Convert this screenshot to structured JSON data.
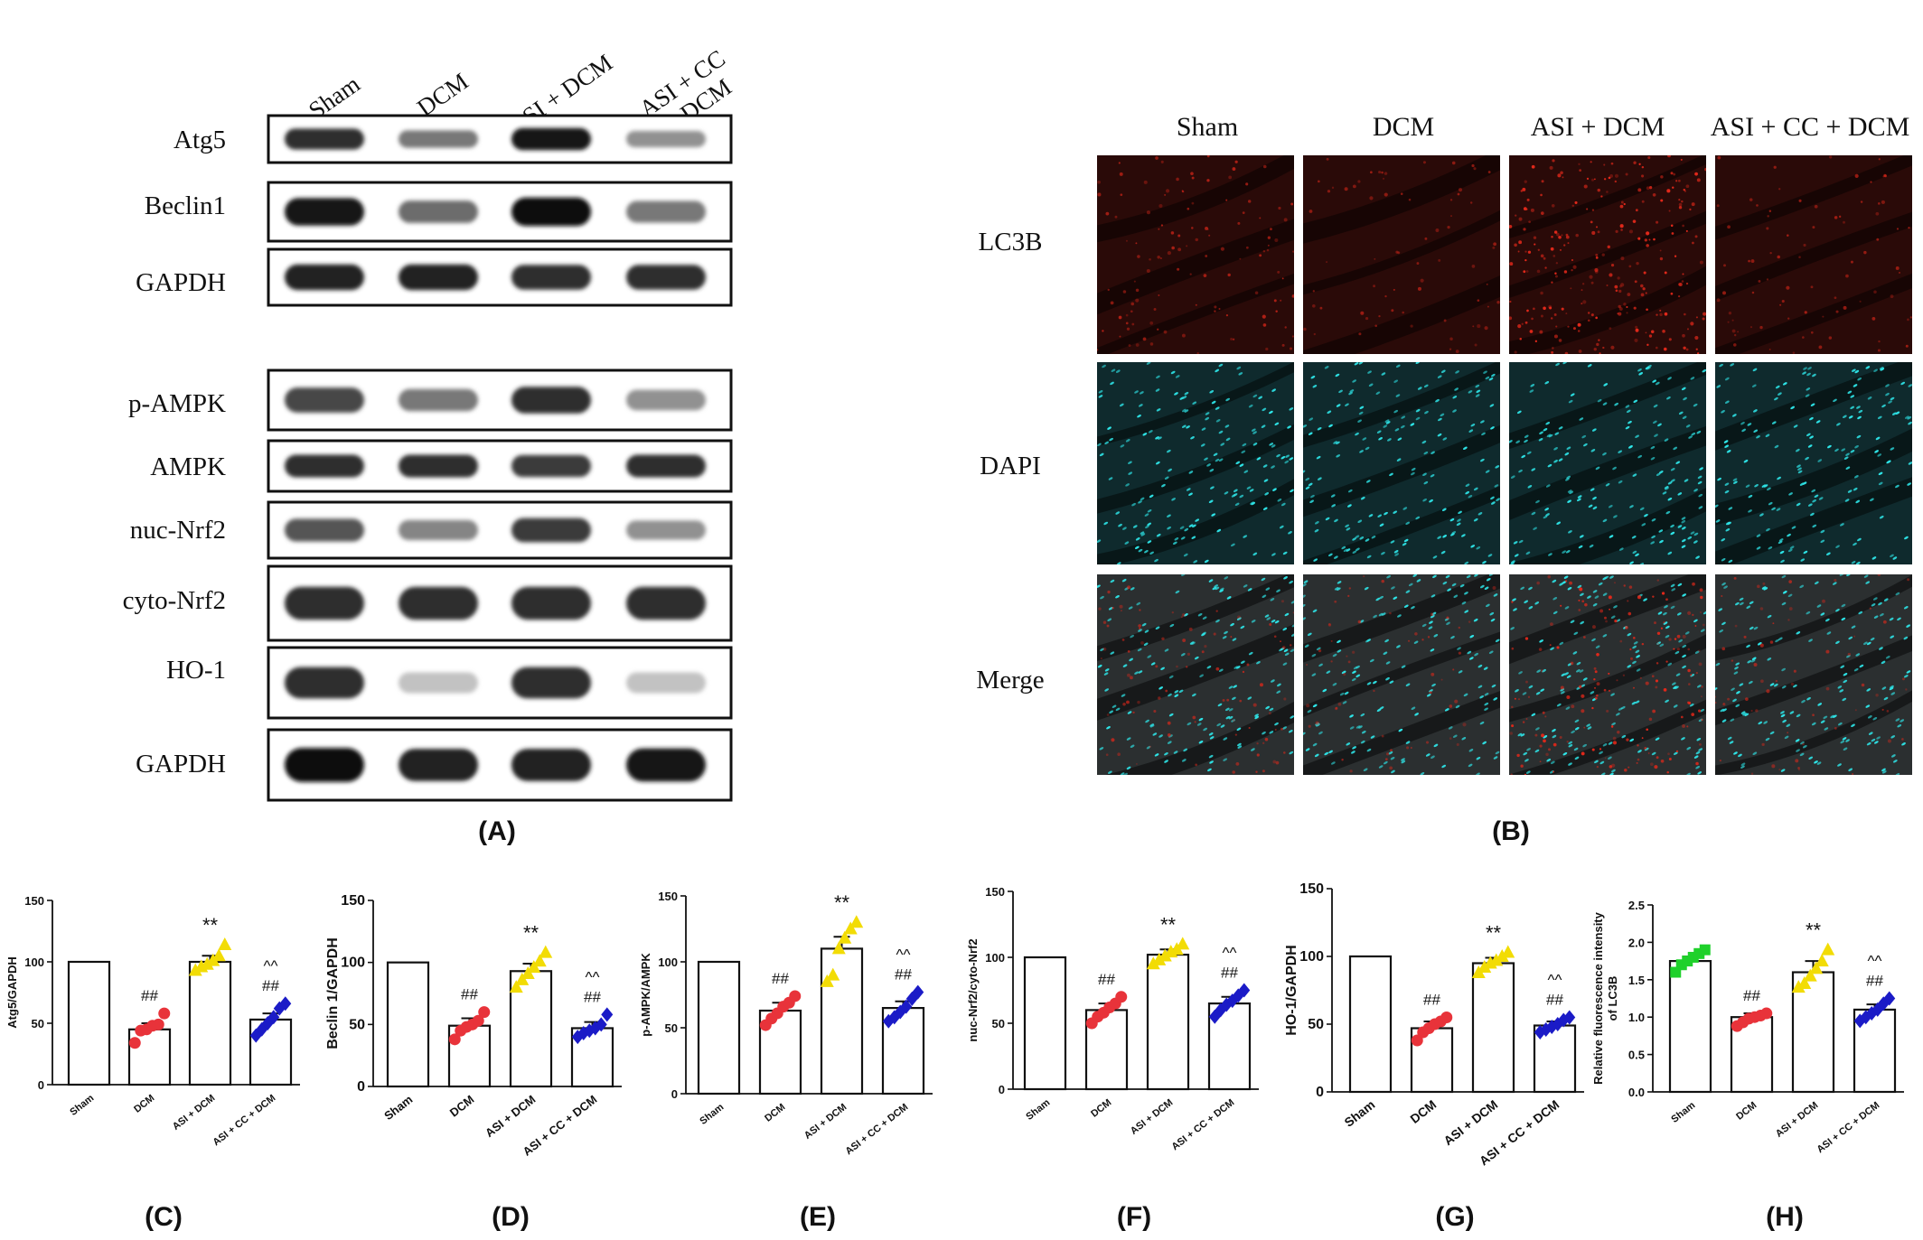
{
  "figure": {
    "panel_labels": [
      "(A)",
      "(B)",
      "(C)",
      "(D)",
      "(E)",
      "(F)",
      "(G)",
      "(H)"
    ]
  },
  "colors": {
    "sham": "#1fd12b",
    "dcm": "#e8333a",
    "asi_dcm": "#f2dc05",
    "asi_cc_dcm": "#1b1bc7",
    "lc3b_bg": "#2a0a08",
    "lc3b_dot": "#e0281a",
    "dapi_bg": "#0f2a2d",
    "dapi_dot": "#2ee6e9",
    "merge_bg": "#2b2f30"
  },
  "blot": {
    "columns": [
      "Sham",
      "DCM",
      "ASI + DCM",
      "ASI + CC\n+ DCM"
    ],
    "rows_top": [
      {
        "label": "Atg5",
        "band_strength": [
          0.85,
          0.55,
          0.95,
          0.45
        ]
      },
      {
        "label": "Beclin1",
        "band_strength": [
          0.95,
          0.6,
          1.0,
          0.55
        ]
      },
      {
        "label": "GAPDH",
        "band_strength": [
          0.9,
          0.9,
          0.85,
          0.85
        ]
      }
    ],
    "rows_bottom": [
      {
        "label": "p-AMPK",
        "band_strength": [
          0.75,
          0.55,
          0.85,
          0.45
        ]
      },
      {
        "label": "AMPK",
        "band_strength": [
          0.85,
          0.85,
          0.8,
          0.85
        ]
      },
      {
        "label": "nuc-Nrf2",
        "band_strength": [
          0.7,
          0.5,
          0.8,
          0.45
        ]
      },
      {
        "label": "cyto-Nrf2",
        "band_strength": [
          0.85,
          0.85,
          0.85,
          0.85
        ]
      },
      {
        "label": "HO-1",
        "band_strength": [
          0.85,
          0.25,
          0.85,
          0.25
        ]
      },
      {
        "label": "GAPDH",
        "band_strength": [
          1.0,
          0.9,
          0.9,
          0.95
        ]
      }
    ]
  },
  "fluorescence": {
    "columns": [
      "Sham",
      "DCM",
      "ASI + DCM",
      "ASI + CC + DCM"
    ],
    "rows": [
      "LC3B",
      "DAPI",
      "Merge"
    ],
    "lc3b_intensity": [
      0.35,
      0.15,
      0.9,
      0.2
    ]
  },
  "chart_data": [
    {
      "type": "bar",
      "panel": "(C)",
      "ylabel": "Atg5/GAPDH",
      "categories": [
        "Sham",
        "DCM",
        "ASI + DCM",
        "ASI + CC + DCM"
      ],
      "values": [
        100,
        45,
        100,
        53
      ],
      "errors": [
        0,
        5,
        5,
        5
      ],
      "points": [
        [
          100
        ],
        [
          34,
          44,
          45,
          48,
          49,
          58
        ],
        [
          93,
          96,
          98,
          101,
          105,
          114
        ],
        [
          40,
          45,
          50,
          55,
          62,
          66
        ]
      ],
      "annotations": [
        "",
        "##",
        "**",
        "^^\n##"
      ],
      "yticks": [
        0,
        50,
        100,
        150
      ],
      "ylim": [
        0,
        150
      ]
    },
    {
      "type": "bar",
      "panel": "(D)",
      "ylabel": "Beclin 1/GAPDH",
      "categories": [
        "Sham",
        "DCM",
        "ASI + DCM",
        "ASI + CC + DCM"
      ],
      "values": [
        100,
        49,
        93,
        47
      ],
      "errors": [
        0,
        6,
        6,
        5
      ],
      "points": [
        [
          100
        ],
        [
          38,
          45,
          48,
          50,
          53,
          60
        ],
        [
          80,
          86,
          91,
          96,
          101,
          108
        ],
        [
          40,
          43,
          45,
          47,
          50,
          58
        ]
      ],
      "annotations": [
        "",
        "##",
        "**",
        "^^\n##"
      ],
      "yticks": [
        0,
        50,
        100,
        150
      ],
      "ylim": [
        0,
        150
      ]
    },
    {
      "type": "bar",
      "panel": "(E)",
      "ylabel": "p-AMPK/AMPK",
      "categories": [
        "Sham",
        "DCM",
        "ASI + DCM",
        "ASI + CC + DCM"
      ],
      "values": [
        100,
        63,
        110,
        65
      ],
      "errors": [
        0,
        6,
        9,
        5
      ],
      "points": [
        [
          100
        ],
        [
          52,
          57,
          61,
          66,
          69,
          74
        ],
        [
          85,
          90,
          110,
          118,
          125,
          130
        ],
        [
          55,
          58,
          62,
          66,
          72,
          77
        ]
      ],
      "annotations": [
        "",
        "##",
        "**",
        "^^\n##"
      ],
      "yticks": [
        0,
        50,
        100,
        150
      ],
      "ylim": [
        0,
        150
      ]
    },
    {
      "type": "bar",
      "panel": "(F)",
      "ylabel": "nuc-Nrf2/cyto-Nrf2",
      "categories": [
        "Sham",
        "DCM",
        "ASI + DCM",
        "ASI + CC + DCM"
      ],
      "values": [
        100,
        60,
        102,
        65
      ],
      "errors": [
        0,
        5,
        4,
        5
      ],
      "points": [
        [
          100
        ],
        [
          50,
          55,
          58,
          62,
          65,
          70
        ],
        [
          95,
          98,
          101,
          104,
          106,
          110
        ],
        [
          55,
          60,
          64,
          67,
          71,
          75
        ]
      ],
      "annotations": [
        "",
        "##",
        "**",
        "^^\n##"
      ],
      "yticks": [
        0,
        50,
        100,
        150
      ],
      "ylim": [
        0,
        150
      ]
    },
    {
      "type": "bar",
      "panel": "(G)",
      "ylabel": "HO-1/GAPDH",
      "categories": [
        "Sham",
        "DCM",
        "ASI + DCM",
        "ASI + CC + DCM"
      ],
      "values": [
        100,
        47,
        95,
        49
      ],
      "errors": [
        0,
        5,
        4,
        3
      ],
      "points": [
        [
          100
        ],
        [
          38,
          44,
          47,
          50,
          52,
          55
        ],
        [
          88,
          92,
          95,
          97,
          100,
          103
        ],
        [
          44,
          46,
          48,
          50,
          53,
          55
        ]
      ],
      "annotations": [
        "",
        "##",
        "**",
        "^^\n##"
      ],
      "yticks": [
        0,
        50,
        100,
        150
      ],
      "ylim": [
        0,
        150
      ]
    },
    {
      "type": "bar",
      "panel": "(H)",
      "ylabel": "Relative fluorescence intensity\nof LC3B",
      "categories": [
        "Sham",
        "DCM",
        "ASI + DCM",
        "ASI + CC + DCM"
      ],
      "values": [
        1.75,
        1.0,
        1.6,
        1.1
      ],
      "errors": [
        0.06,
        0.05,
        0.15,
        0.07
      ],
      "points": [
        [
          1.6,
          1.7,
          1.75,
          1.8,
          1.85,
          1.9
        ],
        [
          0.88,
          0.93,
          0.98,
          1.0,
          1.02,
          1.05
        ],
        [
          1.4,
          1.45,
          1.55,
          1.65,
          1.75,
          1.9
        ],
        [
          0.95,
          1.0,
          1.05,
          1.1,
          1.18,
          1.25
        ]
      ],
      "annotations": [
        "",
        "##",
        "**",
        "^^\n##"
      ],
      "yticks": [
        0.0,
        0.5,
        1.0,
        1.5,
        2.0,
        2.5
      ],
      "ylim": [
        0,
        2.5
      ]
    }
  ]
}
